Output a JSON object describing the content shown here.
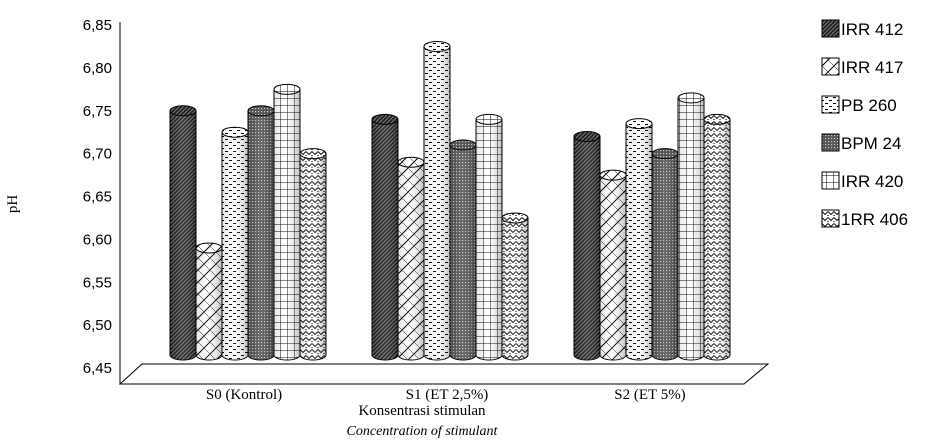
{
  "chart_data": {
    "type": "bar",
    "title": "",
    "xlabel": "Konsentrasi stimulan",
    "xlabel_en": "Concentration  of stimulant",
    "ylabel": "pH",
    "ylim": [
      6.45,
      6.85
    ],
    "yticks": [
      "6,85",
      "6,80",
      "6,75",
      "6,70",
      "6,65",
      "6,60",
      "6,55",
      "6,50",
      "6,45"
    ],
    "categories": [
      "S0 (Kontrol)",
      "S1 (ET 2,5%)",
      "S2 (ET 5%)"
    ],
    "series": [
      {
        "name": "IRR 412",
        "values": [
          6.75,
          6.74,
          6.72
        ],
        "pattern": "dark-diagonal"
      },
      {
        "name": "IRR 417",
        "values": [
          6.59,
          6.69,
          6.675
        ],
        "pattern": "diag-cross"
      },
      {
        "name": "PB 260",
        "values": [
          6.725,
          6.825,
          6.735
        ],
        "pattern": "dashes"
      },
      {
        "name": "BPM 24",
        "values": [
          6.75,
          6.71,
          6.7
        ],
        "pattern": "dark-dots"
      },
      {
        "name": "IRR 420",
        "values": [
          6.775,
          6.74,
          6.765
        ],
        "pattern": "grid"
      },
      {
        "name": "1RR 406",
        "values": [
          6.7,
          6.625,
          6.74
        ],
        "pattern": "zigzag"
      }
    ],
    "grid": false,
    "legend": "right",
    "bar_style": "3d-cylinder"
  }
}
